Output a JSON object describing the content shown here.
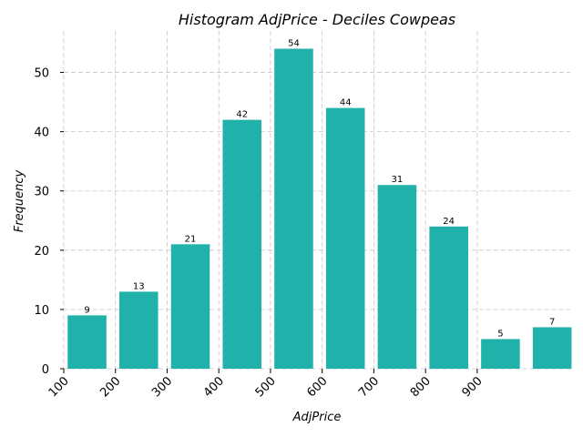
{
  "chart_data": {
    "type": "bar",
    "title": "Histogram AdjPrice - Deciles Cowpeas",
    "xlabel": "AdjPrice",
    "ylabel": "Frequency",
    "bin_edges": [
      100,
      200,
      300,
      400,
      500,
      600,
      700,
      800,
      900
    ],
    "bars": [
      {
        "x": 145,
        "value": 9
      },
      {
        "x": 245,
        "value": 13
      },
      {
        "x": 345,
        "value": 21
      },
      {
        "x": 445,
        "value": 42
      },
      {
        "x": 545,
        "value": 54
      },
      {
        "x": 645,
        "value": 44
      },
      {
        "x": 745,
        "value": 31
      },
      {
        "x": 845,
        "value": 24
      },
      {
        "x": 945,
        "value": 5
      },
      {
        "x": 1045,
        "value": 7
      }
    ],
    "bar_width": 75,
    "xlim": [
      100,
      1080
    ],
    "ylim": [
      0,
      57
    ],
    "xticks": [
      "100",
      "200",
      "300",
      "400",
      "500",
      "600",
      "700",
      "800",
      "900"
    ],
    "yticks": [
      "0",
      "10",
      "20",
      "30",
      "40",
      "50"
    ],
    "ytick_values": [
      0,
      10,
      20,
      30,
      40,
      50
    ],
    "xtick_rotation": 45,
    "grid": true,
    "bar_color": "#20b2aa"
  }
}
